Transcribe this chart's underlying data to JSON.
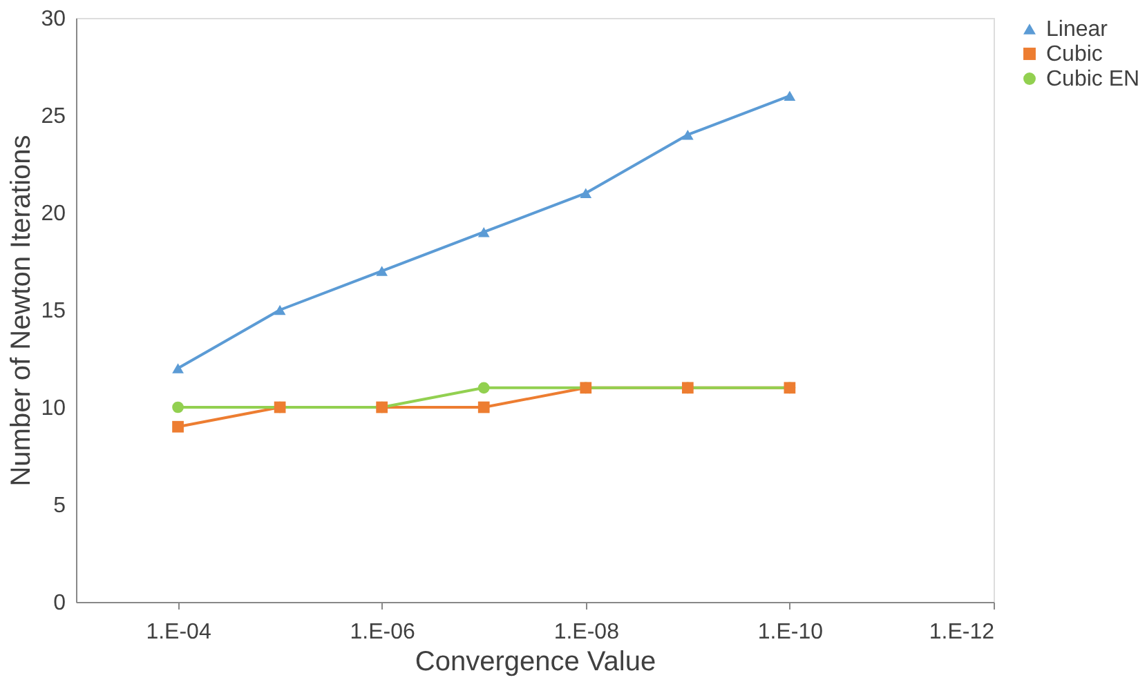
{
  "chart_data": {
    "type": "line",
    "xlabel": "Convergence Value",
    "ylabel": "Number of Newton Iterations",
    "categories": [
      "1.E-04",
      null,
      "1.E-06",
      null,
      "1.E-08",
      null,
      "1.E-10",
      null,
      "1.E-12"
    ],
    "series": [
      {
        "name": "Linear",
        "color": "#5b9bd5",
        "marker": "triangle",
        "values": [
          12,
          15,
          17,
          19,
          21,
          24,
          26,
          null,
          null
        ]
      },
      {
        "name": "Cubic",
        "color": "#ed7d31",
        "marker": "square",
        "values": [
          9,
          10,
          10,
          10,
          11,
          11,
          11,
          null,
          null
        ]
      },
      {
        "name": "Cubic EN",
        "color": "#92d050",
        "marker": "circle",
        "values": [
          10,
          10,
          10,
          11,
          11,
          11,
          11,
          null,
          null
        ]
      }
    ],
    "ylim": [
      0,
      30
    ],
    "yticks": [
      0,
      5,
      10,
      15,
      20,
      25,
      30
    ],
    "grid": false,
    "legend": "top right"
  }
}
